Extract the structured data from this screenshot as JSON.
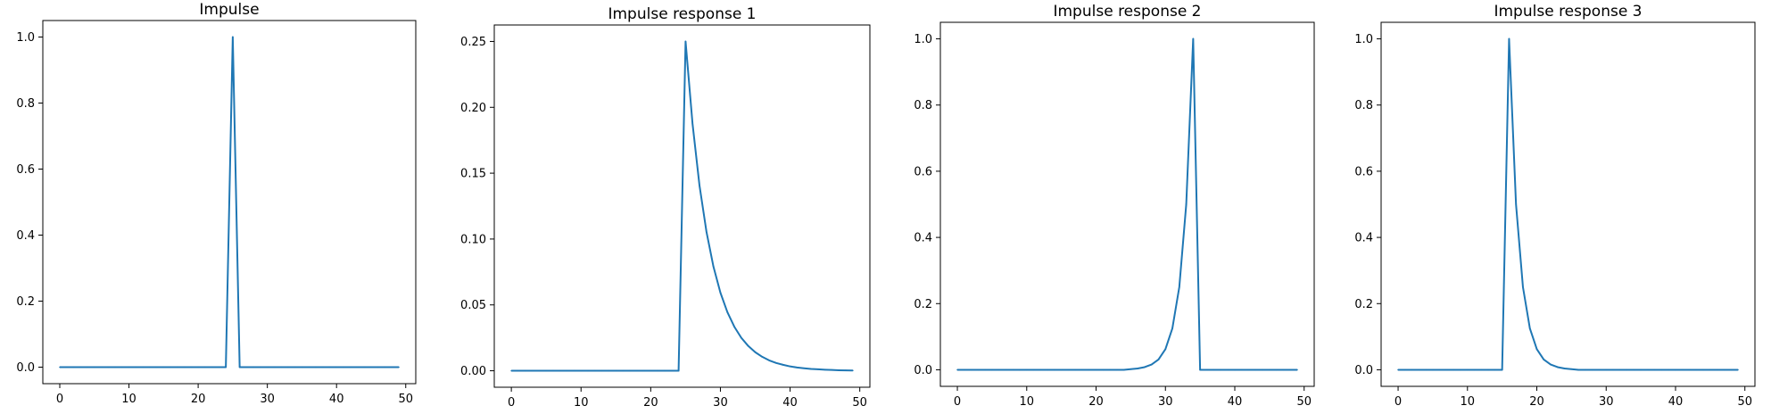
{
  "chart_data": [
    {
      "type": "line",
      "title": "Impulse",
      "xlabel": "",
      "ylabel": "",
      "xlim": [
        -2.45,
        51.45
      ],
      "ylim": [
        -0.05,
        1.05
      ],
      "xticks": [
        0,
        10,
        20,
        30,
        40,
        50
      ],
      "yticks": [
        0.0,
        0.2,
        0.4,
        0.6,
        0.8,
        1.0
      ],
      "xtick_labels": [
        "0",
        "10",
        "20",
        "30",
        "40",
        "50"
      ],
      "ytick_labels": [
        "0.0",
        "0.2",
        "0.4",
        "0.6",
        "0.8",
        "1.0"
      ],
      "grid": false,
      "color": "#1f77b4",
      "x": [
        0,
        1,
        2,
        3,
        4,
        5,
        6,
        7,
        8,
        9,
        10,
        11,
        12,
        13,
        14,
        15,
        16,
        17,
        18,
        19,
        20,
        21,
        22,
        23,
        24,
        25,
        26,
        27,
        28,
        29,
        30,
        31,
        32,
        33,
        34,
        35,
        36,
        37,
        38,
        39,
        40,
        41,
        42,
        43,
        44,
        45,
        46,
        47,
        48,
        49
      ],
      "y": [
        0,
        0,
        0,
        0,
        0,
        0,
        0,
        0,
        0,
        0,
        0,
        0,
        0,
        0,
        0,
        0,
        0,
        0,
        0,
        0,
        0,
        0,
        0,
        0,
        0,
        1,
        0,
        0,
        0,
        0,
        0,
        0,
        0,
        0,
        0,
        0,
        0,
        0,
        0,
        0,
        0,
        0,
        0,
        0,
        0,
        0,
        0,
        0,
        0,
        0
      ]
    },
    {
      "type": "line",
      "title": "Impulse response 1",
      "xlabel": "",
      "ylabel": "",
      "xlim": [
        -2.45,
        51.45
      ],
      "ylim": [
        -0.0125,
        0.2625
      ],
      "xticks": [
        0,
        10,
        20,
        30,
        40,
        50
      ],
      "yticks": [
        0.0,
        0.05,
        0.1,
        0.15,
        0.2,
        0.25
      ],
      "xtick_labels": [
        "0",
        "10",
        "20",
        "30",
        "40",
        "50"
      ],
      "ytick_labels": [
        "0.00",
        "0.05",
        "0.10",
        "0.15",
        "0.20",
        "0.25"
      ],
      "grid": false,
      "color": "#1f77b4",
      "x": [
        0,
        1,
        2,
        3,
        4,
        5,
        6,
        7,
        8,
        9,
        10,
        11,
        12,
        13,
        14,
        15,
        16,
        17,
        18,
        19,
        20,
        21,
        22,
        23,
        24,
        25,
        26,
        27,
        28,
        29,
        30,
        31,
        32,
        33,
        34,
        35,
        36,
        37,
        38,
        39,
        40,
        41,
        42,
        43,
        44,
        45,
        46,
        47,
        48,
        49
      ],
      "y": [
        0,
        0,
        0,
        0,
        0,
        0,
        0,
        0,
        0,
        0,
        0,
        0,
        0,
        0,
        0,
        0,
        0,
        0,
        0,
        0,
        0,
        0,
        0,
        0,
        0,
        0.25,
        0.1875,
        0.1406,
        0.1055,
        0.0791,
        0.0593,
        0.0445,
        0.0334,
        0.025,
        0.0188,
        0.0141,
        0.0106,
        0.0079,
        0.0059,
        0.0045,
        0.0033,
        0.0025,
        0.0019,
        0.0014,
        0.0011,
        0.0008,
        0.0006,
        0.0004,
        0.0003,
        0.0002
      ]
    },
    {
      "type": "line",
      "title": "Impulse response 2",
      "xlabel": "",
      "ylabel": "",
      "xlim": [
        -2.45,
        51.45
      ],
      "ylim": [
        -0.05,
        1.05
      ],
      "xticks": [
        0,
        10,
        20,
        30,
        40,
        50
      ],
      "yticks": [
        0.0,
        0.2,
        0.4,
        0.6,
        0.8,
        1.0
      ],
      "xtick_labels": [
        "0",
        "10",
        "20",
        "30",
        "40",
        "50"
      ],
      "ytick_labels": [
        "0.0",
        "0.2",
        "0.4",
        "0.6",
        "0.8",
        "1.0"
      ],
      "grid": false,
      "color": "#1f77b4",
      "x": [
        0,
        1,
        2,
        3,
        4,
        5,
        6,
        7,
        8,
        9,
        10,
        11,
        12,
        13,
        14,
        15,
        16,
        17,
        18,
        19,
        20,
        21,
        22,
        23,
        24,
        25,
        26,
        27,
        28,
        29,
        30,
        31,
        32,
        33,
        34,
        35,
        36,
        37,
        38,
        39,
        40,
        41,
        42,
        43,
        44,
        45,
        46,
        47,
        48,
        49
      ],
      "y": [
        0,
        0,
        0,
        0,
        0,
        0,
        0,
        0,
        0,
        0,
        0,
        0,
        0,
        0,
        0,
        0,
        0,
        0,
        0,
        0,
        0,
        0,
        0,
        0,
        0,
        0.002,
        0.004,
        0.008,
        0.016,
        0.031,
        0.0625,
        0.125,
        0.25,
        0.5,
        1,
        0,
        0,
        0,
        0,
        0,
        0,
        0,
        0,
        0,
        0,
        0,
        0,
        0,
        0,
        0
      ]
    },
    {
      "type": "line",
      "title": "Impulse response 3",
      "xlabel": "",
      "ylabel": "",
      "xlim": [
        -2.45,
        51.45
      ],
      "ylim": [
        -0.05,
        1.05
      ],
      "xticks": [
        0,
        10,
        20,
        30,
        40,
        50
      ],
      "yticks": [
        0.0,
        0.2,
        0.4,
        0.6,
        0.8,
        1.0
      ],
      "xtick_labels": [
        "0",
        "10",
        "20",
        "30",
        "40",
        "50"
      ],
      "ytick_labels": [
        "0.0",
        "0.2",
        "0.4",
        "0.6",
        "0.8",
        "1.0"
      ],
      "grid": false,
      "color": "#1f77b4",
      "x": [
        0,
        1,
        2,
        3,
        4,
        5,
        6,
        7,
        8,
        9,
        10,
        11,
        12,
        13,
        14,
        15,
        16,
        17,
        18,
        19,
        20,
        21,
        22,
        23,
        24,
        25,
        26,
        27,
        28,
        29,
        30,
        31,
        32,
        33,
        34,
        35,
        36,
        37,
        38,
        39,
        40,
        41,
        42,
        43,
        44,
        45,
        46,
        47,
        48,
        49
      ],
      "y": [
        0,
        0,
        0,
        0,
        0,
        0,
        0,
        0,
        0,
        0,
        0,
        0,
        0,
        0,
        0,
        0,
        1,
        0.5,
        0.25,
        0.125,
        0.0625,
        0.031,
        0.016,
        0.008,
        0.004,
        0.002,
        0,
        0,
        0,
        0,
        0,
        0,
        0,
        0,
        0,
        0,
        0,
        0,
        0,
        0,
        0,
        0,
        0,
        0,
        0,
        0,
        0,
        0,
        0,
        0
      ]
    }
  ]
}
